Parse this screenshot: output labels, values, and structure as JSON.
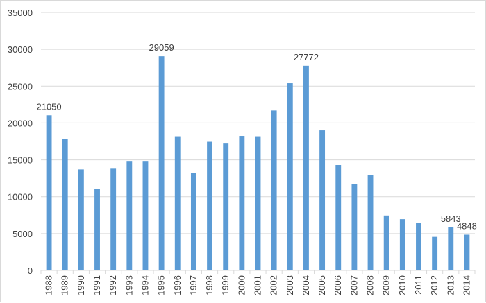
{
  "chart_data": {
    "type": "bar",
    "title": "",
    "xlabel": "",
    "ylabel": "",
    "ylim": [
      0,
      35000
    ],
    "yticks": [
      0,
      5000,
      10000,
      15000,
      20000,
      25000,
      30000,
      35000
    ],
    "grid": true,
    "legend": "none",
    "bar_color": "#5b9bd5",
    "categories": [
      "1988",
      "1989",
      "1990",
      "1991",
      "1992",
      "1993",
      "1994",
      "1995",
      "1996",
      "1997",
      "1998",
      "1999",
      "2000",
      "2001",
      "2002",
      "2003",
      "2004",
      "2005",
      "2006",
      "2007",
      "2008",
      "2009",
      "2010",
      "2011",
      "2012",
      "2013",
      "2014"
    ],
    "values": [
      21050,
      17800,
      13700,
      11050,
      13800,
      14850,
      14850,
      29059,
      18200,
      13200,
      17450,
      17300,
      18250,
      18200,
      21700,
      25400,
      27772,
      19000,
      14300,
      11700,
      12900,
      7450,
      6950,
      6400,
      4550,
      5843,
      4848
    ],
    "data_labels": [
      {
        "category": "1988",
        "text": "21050"
      },
      {
        "category": "1995",
        "text": "29059"
      },
      {
        "category": "2004",
        "text": "27772"
      },
      {
        "category": "2013",
        "text": "5843"
      },
      {
        "category": "2014",
        "text": "4848"
      }
    ]
  }
}
